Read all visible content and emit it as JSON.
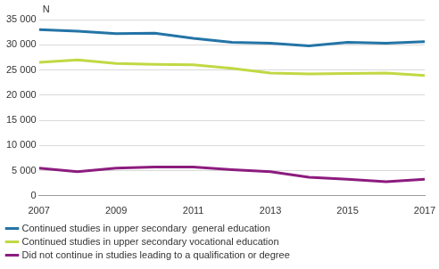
{
  "chart_data": {
    "type": "line",
    "ylabel": "N",
    "x": [
      2007,
      2008,
      2009,
      2010,
      2011,
      2012,
      2013,
      2014,
      2015,
      2016,
      2017
    ],
    "series": [
      {
        "name": "Continued studies in upper secondary  general education",
        "color": "#2474a6",
        "values": [
          33000,
          32700,
          32200,
          32300,
          31300,
          30500,
          30300,
          29800,
          30500,
          30300,
          30600
        ]
      },
      {
        "name": "Continued studies in upper secondary vocational education",
        "color": "#c2d844",
        "values": [
          26500,
          27000,
          26300,
          26100,
          26000,
          25300,
          24400,
          24200,
          24300,
          24400,
          23900
        ]
      },
      {
        "name": "Did not continue in studies leading to a qualification or degree",
        "color": "#8c1c7e",
        "values": [
          5500,
          4800,
          5500,
          5700,
          5700,
          5200,
          4800,
          3700,
          3300,
          2800,
          3300
        ]
      }
    ],
    "xlim": [
      2007,
      2017
    ],
    "xticks": [
      2007,
      2009,
      2011,
      2013,
      2015,
      2017
    ],
    "ylim": [
      0,
      35000
    ],
    "yticks": [
      0,
      {
        "value": 5000,
        "label": "5 000"
      },
      {
        "value": 10000,
        "label": "10 000"
      },
      {
        "value": 15000,
        "label": "15 000"
      },
      {
        "value": 20000,
        "label": "20 000"
      },
      {
        "value": 25000,
        "label": "25 000"
      },
      {
        "value": 30000,
        "label": "30 000"
      },
      {
        "value": 35000,
        "label": "35 000"
      }
    ],
    "grid": true,
    "legend": "bottom"
  }
}
